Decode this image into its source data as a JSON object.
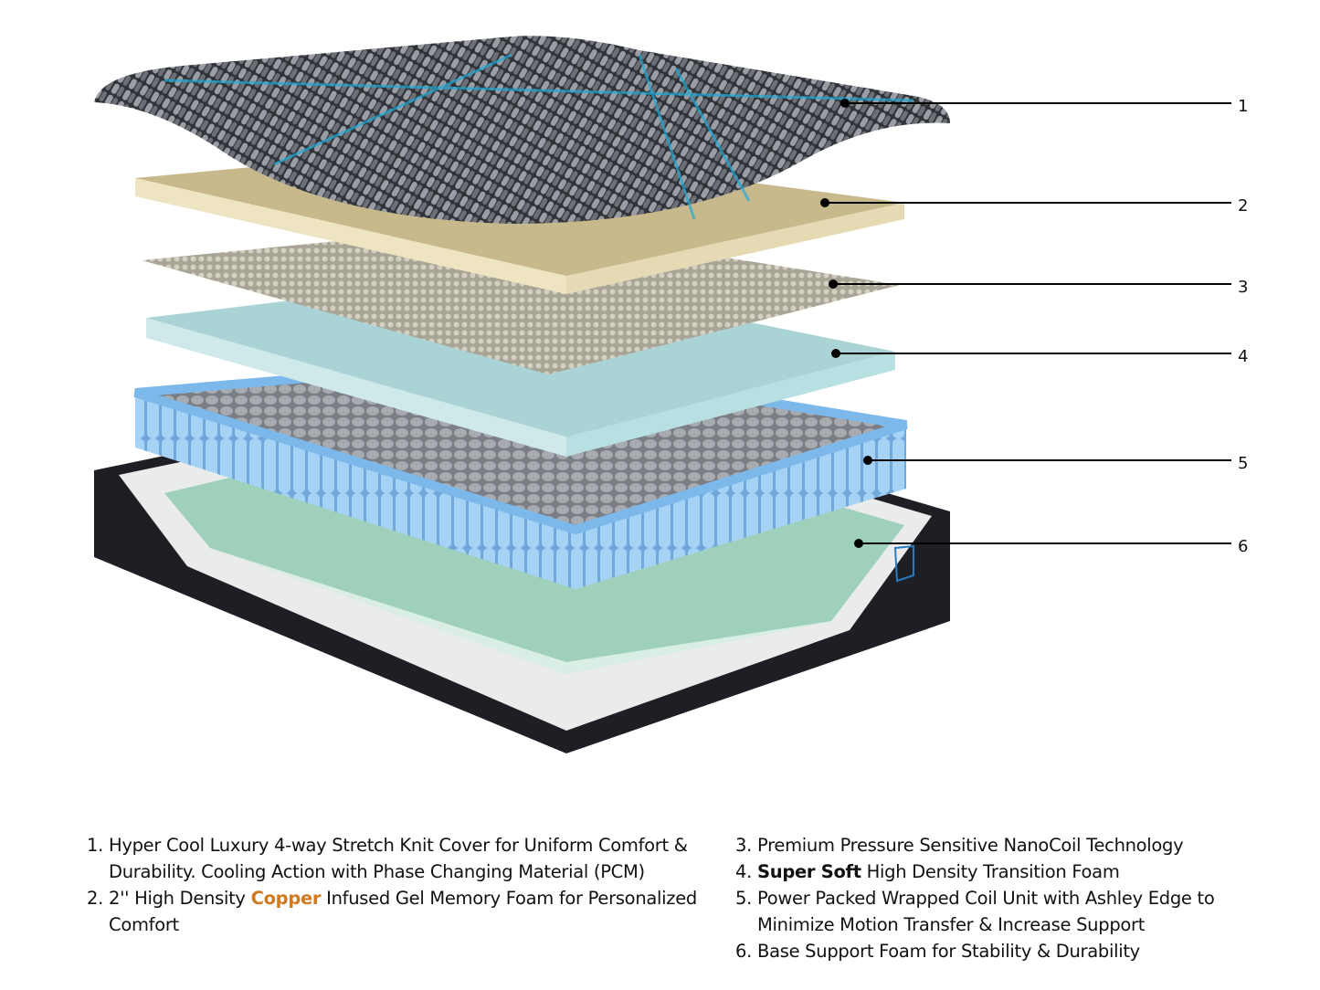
{
  "callouts": [
    "1",
    "2",
    "3",
    "4",
    "5",
    "6"
  ],
  "colors": {
    "copper_highlight": "#d2781e",
    "cover": "#3a3d42",
    "cover_accent": "#1fa9d6",
    "memory_foam": "#e3d6ad",
    "nanocoil": "#b9b6a8",
    "transition_foam": "#a9d3d4",
    "coils": "#8fc3ee",
    "base_foam": "#9fd0bb",
    "base_cover": "#1e1f24"
  },
  "legend": {
    "left": [
      {
        "num": "1.",
        "segments": [
          {
            "text": "Hyper Cool Luxury 4-way Stretch Knit Cover for Uniform Comfort & Durability. Cooling Action with Phase Changing Material (PCM)",
            "style": "normal"
          }
        ]
      },
      {
        "num": "2.",
        "segments": [
          {
            "text": "2'' High Density ",
            "style": "normal"
          },
          {
            "text": "Copper",
            "style": "highlight"
          },
          {
            "text": " Infused Gel Memory Foam for Personalized Comfort",
            "style": "normal"
          }
        ]
      }
    ],
    "right": [
      {
        "num": "3.",
        "segments": [
          {
            "text": "Premium Pressure Sensitive NanoCoil Technology",
            "style": "normal"
          }
        ]
      },
      {
        "num": "4.",
        "segments": [
          {
            "text": "Super Soft",
            "style": "bold"
          },
          {
            "text": " High Density Transition Foam",
            "style": "normal"
          }
        ]
      },
      {
        "num": "5.",
        "segments": [
          {
            "text": "Power Packed Wrapped Coil Unit with Ashley Edge to Minimize Motion Transfer & Increase Support",
            "style": "normal"
          }
        ]
      },
      {
        "num": "6.",
        "segments": [
          {
            "text": "Base Support Foam for Stability & Durability",
            "style": "normal"
          }
        ]
      }
    ]
  }
}
